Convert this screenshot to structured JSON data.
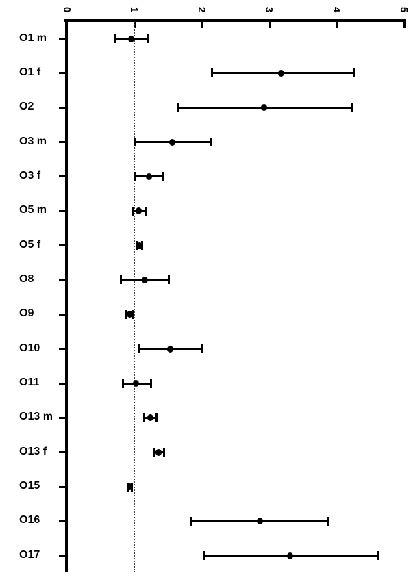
{
  "chart_data": {
    "type": "scatter",
    "subtype": "forest-plot-points-with-error-bars",
    "orientation": "horizontal",
    "title": "",
    "xlabel": "",
    "ylabel": "",
    "grid": false,
    "x_axis": {
      "position": "top",
      "lim": [
        0,
        5
      ],
      "ticks": [
        0,
        1,
        2,
        3,
        4,
        5
      ],
      "tick_labels": [
        "0",
        "1",
        "2",
        "3",
        "4",
        "5"
      ],
      "tick_label_rotation_deg": 90
    },
    "reference_line_x": 1,
    "categories": [
      "O1 m",
      "O1 f",
      "O2",
      "O3 m",
      "O3 f",
      "O5 m",
      "O5 f",
      "O8",
      "O9",
      "O10",
      "O11",
      "O13 m",
      "O13 f",
      "O15",
      "O16",
      "O17"
    ],
    "series": [
      {
        "name": "point estimate with confidence interval",
        "values": [
          0.95,
          3.18,
          2.92,
          1.56,
          1.21,
          1.06,
          1.07,
          1.15,
          0.93,
          1.53,
          1.02,
          1.23,
          1.36,
          0.93,
          2.86,
          3.31
        ],
        "ci_low": [
          0.72,
          2.15,
          1.65,
          1.0,
          1.01,
          0.97,
          1.03,
          0.8,
          0.88,
          1.07,
          0.83,
          1.14,
          1.29,
          0.91,
          1.84,
          2.04
        ],
        "ci_high": [
          1.19,
          4.25,
          4.23,
          2.13,
          1.43,
          1.16,
          1.11,
          1.51,
          0.98,
          2.0,
          1.24,
          1.33,
          1.44,
          0.96,
          3.88,
          4.62
        ]
      }
    ],
    "colors": {
      "marker": "#000000",
      "axis": "#000000",
      "reference_line": "#444444",
      "background": "#ffffff"
    }
  }
}
